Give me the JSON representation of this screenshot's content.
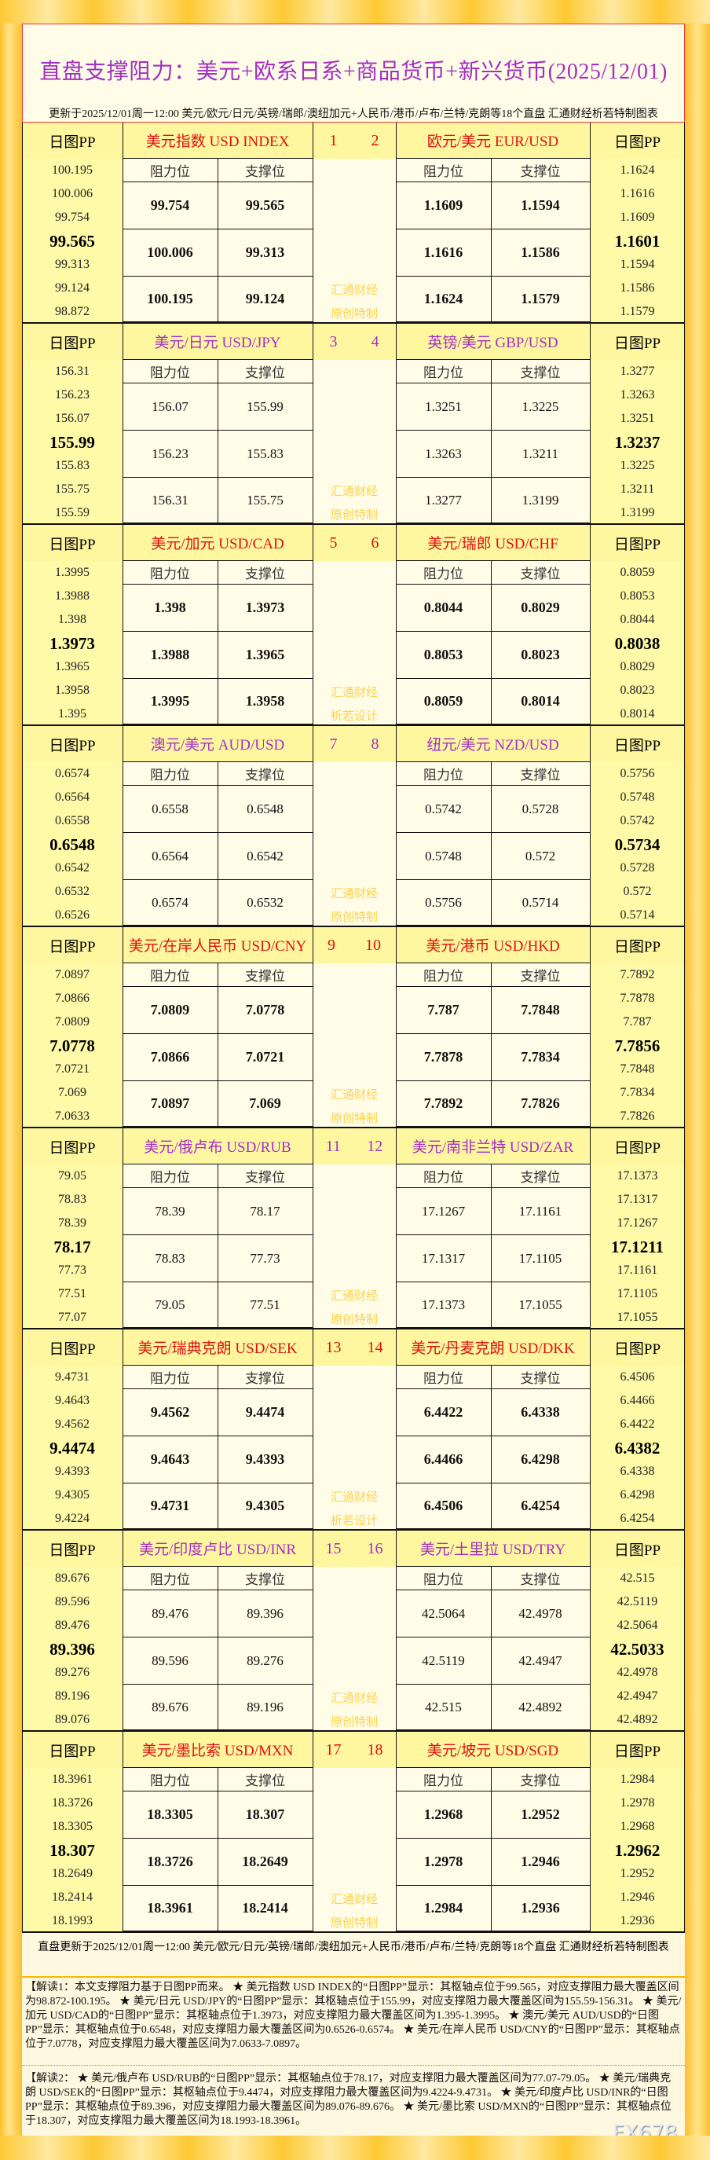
{
  "header": {
    "title": "直盘支撑阻力：美元+欧系日系+商品货币+新兴货币(2025/12/01)",
    "subtitle": "更新于2025/12/01周一12:00 美元/欧元/日元/英镑/瑞郎/澳纽加元+人民币/港币/卢布/兰特/克朗等18个直盘 汇通财经析若特制图表"
  },
  "labels": {
    "pp": "日图PP",
    "resistance": "阻力位",
    "support": "支撑位"
  },
  "colors": {
    "red": "#e01010",
    "purple": "#a32fc4",
    "watermark": "#ffd24d"
  },
  "blocks": [
    {
      "style": "red",
      "nums": [
        "1",
        "2"
      ],
      "watermark": [
        "汇通财经",
        "原创特制"
      ],
      "left": {
        "title": "美元指数 USD INDEX",
        "pp": [
          "100.195",
          "100.006",
          "99.754",
          "99.565",
          "99.313",
          "99.124",
          "98.872"
        ],
        "rows": [
          [
            "99.754",
            "99.565"
          ],
          [
            "100.006",
            "99.313"
          ],
          [
            "100.195",
            "99.124"
          ]
        ]
      },
      "right": {
        "title": "欧元/美元 EUR/USD",
        "pp": [
          "1.1624",
          "1.1616",
          "1.1609",
          "1.1601",
          "1.1594",
          "1.1586",
          "1.1579"
        ],
        "rows": [
          [
            "1.1609",
            "1.1594"
          ],
          [
            "1.1616",
            "1.1586"
          ],
          [
            "1.1624",
            "1.1579"
          ]
        ]
      }
    },
    {
      "style": "purple",
      "nums": [
        "3",
        "4"
      ],
      "watermark": [
        "汇通财经",
        "原创特制"
      ],
      "left": {
        "title": "美元/日元 USD/JPY",
        "pp": [
          "156.31",
          "156.23",
          "156.07",
          "155.99",
          "155.83",
          "155.75",
          "155.59"
        ],
        "rows": [
          [
            "156.07",
            "155.99"
          ],
          [
            "156.23",
            "155.83"
          ],
          [
            "156.31",
            "155.75"
          ]
        ]
      },
      "right": {
        "title": "英镑/美元 GBP/USD",
        "pp": [
          "1.3277",
          "1.3263",
          "1.3251",
          "1.3237",
          "1.3225",
          "1.3211",
          "1.3199"
        ],
        "rows": [
          [
            "1.3251",
            "1.3225"
          ],
          [
            "1.3263",
            "1.3211"
          ],
          [
            "1.3277",
            "1.3199"
          ]
        ]
      }
    },
    {
      "style": "red",
      "nums": [
        "5",
        "6"
      ],
      "watermark": [
        "汇通财经",
        "析若设计"
      ],
      "left": {
        "title": "美元/加元 USD/CAD",
        "pp": [
          "1.3995",
          "1.3988",
          "1.398",
          "1.3973",
          "1.3965",
          "1.3958",
          "1.395"
        ],
        "rows": [
          [
            "1.398",
            "1.3973"
          ],
          [
            "1.3988",
            "1.3965"
          ],
          [
            "1.3995",
            "1.3958"
          ]
        ]
      },
      "right": {
        "title": "美元/瑞郎 USD/CHF",
        "pp": [
          "0.8059",
          "0.8053",
          "0.8044",
          "0.8038",
          "0.8029",
          "0.8023",
          "0.8014"
        ],
        "rows": [
          [
            "0.8044",
            "0.8029"
          ],
          [
            "0.8053",
            "0.8023"
          ],
          [
            "0.8059",
            "0.8014"
          ]
        ]
      }
    },
    {
      "style": "purple",
      "nums": [
        "7",
        "8"
      ],
      "watermark": [
        "汇通财经",
        "原创特制"
      ],
      "left": {
        "title": "澳元/美元 AUD/USD",
        "pp": [
          "0.6574",
          "0.6564",
          "0.6558",
          "0.6548",
          "0.6542",
          "0.6532",
          "0.6526"
        ],
        "rows": [
          [
            "0.6558",
            "0.6548"
          ],
          [
            "0.6564",
            "0.6542"
          ],
          [
            "0.6574",
            "0.6532"
          ]
        ]
      },
      "right": {
        "title": "纽元/美元 NZD/USD",
        "pp": [
          "0.5756",
          "0.5748",
          "0.5742",
          "0.5734",
          "0.5728",
          "0.572",
          "0.5714"
        ],
        "rows": [
          [
            "0.5742",
            "0.5728"
          ],
          [
            "0.5748",
            "0.572"
          ],
          [
            "0.5756",
            "0.5714"
          ]
        ]
      }
    },
    {
      "style": "red",
      "nums": [
        "9",
        "10"
      ],
      "watermark": [
        "汇通财经",
        "原创特制"
      ],
      "left": {
        "title": "美元/在岸人民币 USD/CNY",
        "pp": [
          "7.0897",
          "7.0866",
          "7.0809",
          "7.0778",
          "7.0721",
          "7.069",
          "7.0633"
        ],
        "rows": [
          [
            "7.0809",
            "7.0778"
          ],
          [
            "7.0866",
            "7.0721"
          ],
          [
            "7.0897",
            "7.069"
          ]
        ]
      },
      "right": {
        "title": "美元/港币 USD/HKD",
        "pp": [
          "7.7892",
          "7.7878",
          "7.787",
          "7.7856",
          "7.7848",
          "7.7834",
          "7.7826"
        ],
        "rows": [
          [
            "7.787",
            "7.7848"
          ],
          [
            "7.7878",
            "7.7834"
          ],
          [
            "7.7892",
            "7.7826"
          ]
        ]
      }
    },
    {
      "style": "purple",
      "nums": [
        "11",
        "12"
      ],
      "watermark": [
        "汇通财经",
        "原创特制"
      ],
      "left": {
        "title": "美元/俄卢布 USD/RUB",
        "pp": [
          "79.05",
          "78.83",
          "78.39",
          "78.17",
          "77.73",
          "77.51",
          "77.07"
        ],
        "rows": [
          [
            "78.39",
            "78.17"
          ],
          [
            "78.83",
            "77.73"
          ],
          [
            "79.05",
            "77.51"
          ]
        ]
      },
      "right": {
        "title": "美元/南非兰特 USD/ZAR",
        "pp": [
          "17.1373",
          "17.1317",
          "17.1267",
          "17.1211",
          "17.1161",
          "17.1105",
          "17.1055"
        ],
        "rows": [
          [
            "17.1267",
            "17.1161"
          ],
          [
            "17.1317",
            "17.1105"
          ],
          [
            "17.1373",
            "17.1055"
          ]
        ]
      }
    },
    {
      "style": "red",
      "nums": [
        "13",
        "14"
      ],
      "watermark": [
        "汇通财经",
        "析若设计"
      ],
      "left": {
        "title": "美元/瑞典克朗 USD/SEK",
        "pp": [
          "9.4731",
          "9.4643",
          "9.4562",
          "9.4474",
          "9.4393",
          "9.4305",
          "9.4224"
        ],
        "rows": [
          [
            "9.4562",
            "9.4474"
          ],
          [
            "9.4643",
            "9.4393"
          ],
          [
            "9.4731",
            "9.4305"
          ]
        ]
      },
      "right": {
        "title": "美元/丹麦克朗 USD/DKK",
        "pp": [
          "6.4506",
          "6.4466",
          "6.4422",
          "6.4382",
          "6.4338",
          "6.4298",
          "6.4254"
        ],
        "rows": [
          [
            "6.4422",
            "6.4338"
          ],
          [
            "6.4466",
            "6.4298"
          ],
          [
            "6.4506",
            "6.4254"
          ]
        ]
      }
    },
    {
      "style": "purple",
      "nums": [
        "15",
        "16"
      ],
      "watermark": [
        "汇通财经",
        "原创特制"
      ],
      "left": {
        "title": "美元/印度卢比 USD/INR",
        "pp": [
          "89.676",
          "89.596",
          "89.476",
          "89.396",
          "89.276",
          "89.196",
          "89.076"
        ],
        "rows": [
          [
            "89.476",
            "89.396"
          ],
          [
            "89.596",
            "89.276"
          ],
          [
            "89.676",
            "89.196"
          ]
        ]
      },
      "right": {
        "title": "美元/土里拉 USD/TRY",
        "pp": [
          "42.515",
          "42.5119",
          "42.5064",
          "42.5033",
          "42.4978",
          "42.4947",
          "42.4892"
        ],
        "rows": [
          [
            "42.5064",
            "42.4978"
          ],
          [
            "42.5119",
            "42.4947"
          ],
          [
            "42.515",
            "42.4892"
          ]
        ]
      }
    },
    {
      "style": "red",
      "nums": [
        "17",
        "18"
      ],
      "watermark": [
        "汇通财经",
        "原创特制"
      ],
      "left": {
        "title": "美元/墨比索 USD/MXN",
        "pp": [
          "18.3961",
          "18.3726",
          "18.3305",
          "18.307",
          "18.2649",
          "18.2414",
          "18.1993"
        ],
        "rows": [
          [
            "18.3305",
            "18.307"
          ],
          [
            "18.3726",
            "18.2649"
          ],
          [
            "18.3961",
            "18.2414"
          ]
        ]
      },
      "right": {
        "title": "美元/坡元 USD/SGD",
        "pp": [
          "1.2984",
          "1.2978",
          "1.2968",
          "1.2962",
          "1.2952",
          "1.2946",
          "1.2936"
        ],
        "rows": [
          [
            "1.2968",
            "1.2952"
          ],
          [
            "1.2978",
            "1.2946"
          ],
          [
            "1.2984",
            "1.2936"
          ]
        ]
      }
    }
  ],
  "footer": "直盘更新于2025/12/01周一12:00 美元/欧元/日元/英镑/瑞郎/澳纽加元+人民币/港币/卢布/兰特/克朗等18个直盘 汇通财经析若特制图表",
  "notes": [
    "【解读1：本文支撑阻力基于日图PP而来。 ★ 美元指数 USD INDEX的“日图PP”显示：其枢轴点位于99.565，对应支撑阻力最大覆盖区间为98.872-100.195。 ★ 美元/日元 USD/JPY的“日图PP”显示：其枢轴点位于155.99，对应支撑阻力最大覆盖区间为155.59-156.31。 ★ 美元/加元 USD/CAD的“日图PP”显示：其枢轴点位于1.3973，对应支撑阻力最大覆盖区间为1.395-1.3995。 ★ 澳元/美元 AUD/USD的“日图PP”显示：其枢轴点位于0.6548，对应支撑阻力最大覆盖区间为0.6526-0.6574。 ★ 美元/在岸人民币 USD/CNY的“日图PP”显示：其枢轴点位于7.0778，对应支撑阻力最大覆盖区间为7.0633-7.0897。",
    "【解读2： ★ 美元/俄卢布 USD/RUB的“日图PP”显示：其枢轴点位于78.17，对应支撑阻力最大覆盖区间为77.07-79.05。 ★ 美元/瑞典克朗 USD/SEK的“日图PP”显示：其枢轴点位于9.4474，对应支撑阻力最大覆盖区间为9.4224-9.4731。 ★ 美元/印度卢比 USD/INR的“日图PP”显示：其枢轴点位于89.396，对应支撑阻力最大覆盖区间为89.076-89.676。 ★ 美元/墨比索 USD/MXN的“日图PP”显示：其枢轴点位于18.307，对应支撑阻力最大覆盖区间为18.1993-18.3961。"
  ],
  "logo": "FX678"
}
